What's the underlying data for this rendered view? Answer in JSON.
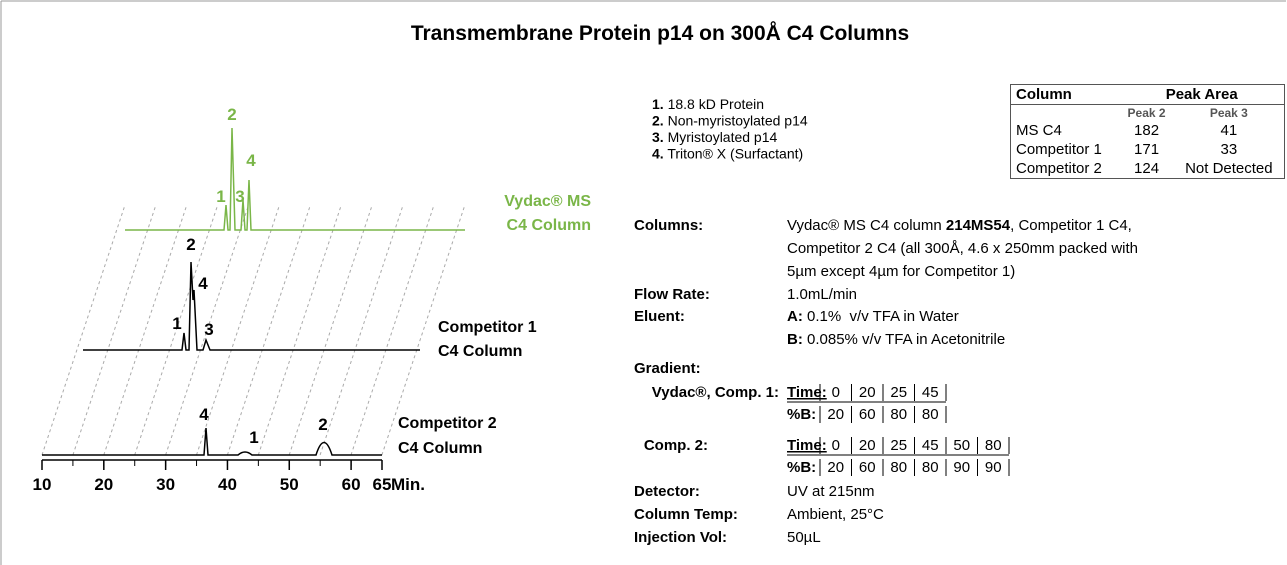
{
  "title": "Transmembrane Protein p14 on 300Å C4 Columns",
  "peak_list": [
    {
      "n": "1.",
      "name": "18.8 kD Protein"
    },
    {
      "n": "2.",
      "name": "Non-myristoylated p14"
    },
    {
      "n": "3.",
      "name": "Myristoylated p14"
    },
    {
      "n": "4.",
      "name": "Triton® X (Surfactant)"
    }
  ],
  "table": {
    "column_header": "Column",
    "area_header": "Peak Area",
    "sub": [
      "Peak 2",
      "Peak 3"
    ],
    "rows": [
      [
        "MS C4",
        182,
        41
      ],
      [
        "Competitor 1",
        171,
        33
      ],
      [
        "Competitor 2",
        124,
        "Not Detected"
      ]
    ]
  },
  "chromatogram": {
    "traces": [
      {
        "name_lines": [
          "Vydac® MS",
          "C4 Column"
        ],
        "peak_labels": [
          "2",
          "1",
          "3",
          "4"
        ]
      },
      {
        "name_lines": [
          "Competitor 1",
          "C4 Column"
        ],
        "peak_labels": [
          "2",
          "4",
          "1",
          "3"
        ]
      },
      {
        "name_lines": [
          "Competitor 2",
          "C4 Column"
        ],
        "peak_labels": [
          "4",
          "1",
          "2"
        ]
      }
    ],
    "x_ticks": [
      10,
      20,
      30,
      40,
      50,
      60,
      65
    ],
    "x_unit": "Min."
  },
  "conditions": {
    "columns": {
      "label": "Columns:",
      "line1": [
        "Vydac® MS C4 column ",
        "214MS54",
        ", Competitor 1 C4,"
      ],
      "line2": "Competitor 2 C4 (all 300Å, 4.6 x 250mm packed with",
      "line3": "5µm except 4µm for Competitor 1)"
    },
    "flow": {
      "label": "Flow Rate:",
      "value": "1.0mL/min"
    },
    "eluent": {
      "label": "Eluent:",
      "a": [
        "A:",
        " 0.1%  v/v TFA in Water"
      ],
      "b": [
        "B:",
        " 0.085% v/v TFA in Acetonitrile"
      ]
    },
    "gradient": {
      "label": "Gradient:",
      "time_label": "Time:",
      "b_label": "%B:",
      "rows": [
        {
          "label": "Vydac®, Comp. 1:",
          "time": [
            0,
            20,
            25,
            45
          ],
          "b": [
            20,
            60,
            80,
            80
          ]
        },
        {
          "label": "Comp. 2:",
          "time": [
            0,
            20,
            25,
            45,
            50,
            80
          ],
          "b": [
            20,
            60,
            80,
            80,
            90,
            90
          ]
        }
      ]
    },
    "detector": {
      "label": "Detector:",
      "value": "UV at 215nm"
    },
    "temp": {
      "label": "Column Temp:",
      "value": "Ambient, 25°C"
    },
    "injection": {
      "label": "Injection Vol:",
      "value": "50µL"
    }
  }
}
